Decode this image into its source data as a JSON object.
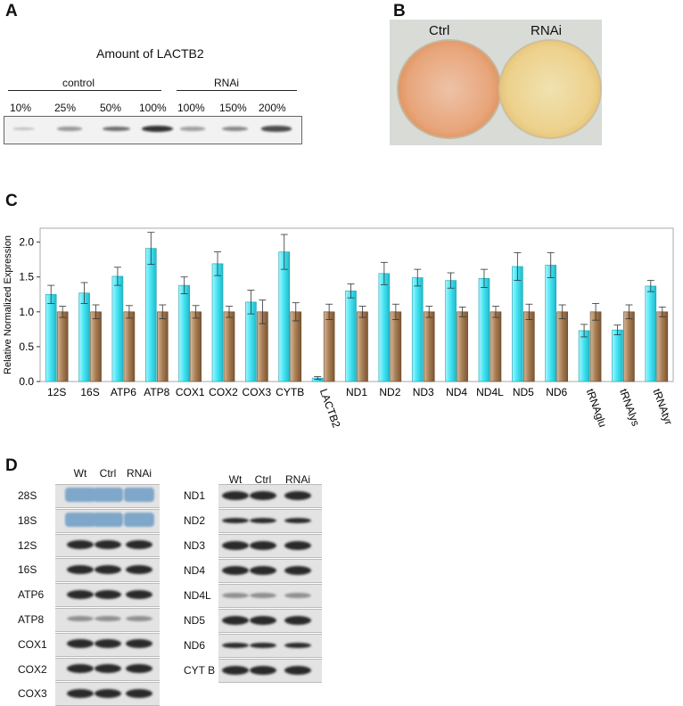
{
  "panelA": {
    "label": "A",
    "title": "Amount of LACTB2",
    "group_control": "control",
    "group_rnai": "RNAi",
    "lanes": [
      "10%",
      "25%",
      "50%",
      "100%",
      "100%",
      "150%",
      "200%"
    ],
    "band_intensity": [
      0.12,
      0.35,
      0.6,
      0.95,
      0.3,
      0.45,
      0.8
    ]
  },
  "panelB": {
    "label": "B",
    "left_label": "Ctrl",
    "right_label": "RNAi",
    "left_color": "#e8a070",
    "right_color": "#e8c87a"
  },
  "panelC": {
    "label": "C",
    "ylabel": "Relative Normalized Expression"
  },
  "chart_data": {
    "type": "bar",
    "categories": [
      "12S",
      "16S",
      "ATP6",
      "ATP8",
      "COX1",
      "COX2",
      "COX3",
      "CYTB",
      "LACTB2",
      "ND1",
      "ND2",
      "ND3",
      "ND4",
      "ND4L",
      "ND5",
      "ND6",
      "tRNAglu",
      "tRNAlys",
      "tRNAtyr"
    ],
    "series": [
      {
        "color": "#40e0f0",
        "values": [
          1.25,
          1.27,
          1.51,
          1.91,
          1.38,
          1.69,
          1.14,
          1.86,
          0.05,
          1.3,
          1.55,
          1.49,
          1.45,
          1.48,
          1.65,
          1.67,
          0.73,
          0.74,
          1.37
        ],
        "errors": [
          0.13,
          0.15,
          0.13,
          0.23,
          0.12,
          0.17,
          0.17,
          0.25,
          0.02,
          0.1,
          0.16,
          0.12,
          0.11,
          0.13,
          0.2,
          0.18,
          0.09,
          0.07,
          0.08
        ]
      },
      {
        "color": "#a07850",
        "values": [
          1.0,
          1.0,
          1.0,
          1.0,
          1.0,
          1.0,
          1.0,
          1.0,
          1.0,
          1.0,
          1.0,
          1.0,
          1.0,
          1.0,
          1.0,
          1.0,
          1.0,
          1.0,
          1.0
        ],
        "errors": [
          0.08,
          0.1,
          0.09,
          0.1,
          0.09,
          0.08,
          0.17,
          0.13,
          0.11,
          0.08,
          0.11,
          0.08,
          0.07,
          0.08,
          0.11,
          0.1,
          0.12,
          0.1,
          0.07
        ]
      }
    ],
    "yticks": [
      0.0,
      0.5,
      1.0,
      1.5,
      2.0
    ],
    "ylim": [
      0,
      2.2
    ],
    "grid": false,
    "ylabel": "Relative Normalized Expression"
  },
  "panelD": {
    "label": "D",
    "lane_labels": [
      "Wt",
      "Ctrl",
      "RNAi"
    ],
    "left_rows": [
      "28S",
      "18S",
      "12S",
      "16S",
      "ATP6",
      "ATP8",
      "COX1",
      "COX2",
      "COX3"
    ],
    "right_rows": [
      "ND1",
      "ND2",
      "ND3",
      "ND4",
      "ND4L",
      "ND5",
      "ND6",
      "CYT B"
    ],
    "rrna_color": "#7ea7c9"
  }
}
